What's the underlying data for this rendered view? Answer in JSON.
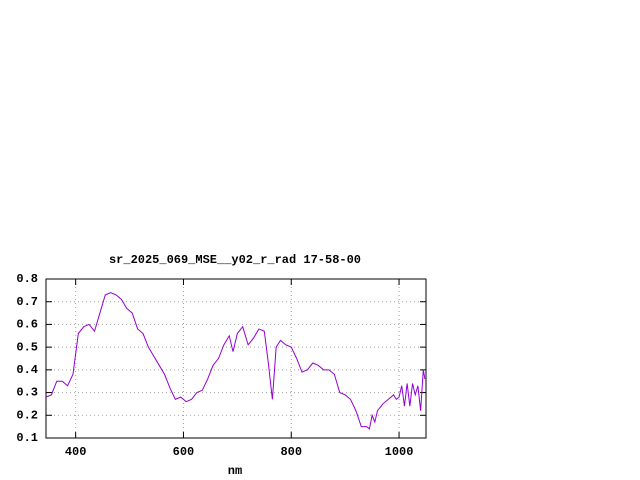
{
  "chart_data": {
    "type": "line",
    "title": "sr_2025_069_MSE__y02_r_rad 17-58-00",
    "x_label": "nm",
    "x": [
      345,
      355,
      365,
      375,
      385,
      395,
      405,
      415,
      425,
      435,
      445,
      455,
      465,
      475,
      485,
      495,
      505,
      515,
      525,
      535,
      545,
      555,
      565,
      575,
      585,
      595,
      605,
      615,
      625,
      635,
      645,
      655,
      665,
      675,
      685,
      692,
      700,
      710,
      720,
      730,
      740,
      750,
      758,
      765,
      772,
      780,
      790,
      800,
      810,
      820,
      830,
      840,
      850,
      860,
      870,
      880,
      890,
      900,
      910,
      920,
      930,
      940,
      945,
      950,
      955,
      960,
      970,
      980,
      990,
      995,
      1000,
      1005,
      1010,
      1015,
      1020,
      1025,
      1030,
      1035,
      1040,
      1045,
      1048
    ],
    "series": [
      {
        "name": null,
        "color": "#9400d3",
        "values": [
          0.28,
          0.29,
          0.35,
          0.35,
          0.33,
          0.38,
          0.56,
          0.59,
          0.6,
          0.57,
          0.65,
          0.73,
          0.74,
          0.73,
          0.71,
          0.67,
          0.65,
          0.58,
          0.56,
          0.5,
          0.46,
          0.42,
          0.38,
          0.32,
          0.27,
          0.28,
          0.26,
          0.27,
          0.3,
          0.31,
          0.36,
          0.42,
          0.45,
          0.51,
          0.55,
          0.48,
          0.56,
          0.59,
          0.51,
          0.54,
          0.58,
          0.57,
          0.42,
          0.27,
          0.5,
          0.53,
          0.51,
          0.5,
          0.45,
          0.39,
          0.4,
          0.43,
          0.42,
          0.4,
          0.4,
          0.38,
          0.3,
          0.29,
          0.27,
          0.22,
          0.15,
          0.15,
          0.14,
          0.2,
          0.17,
          0.22,
          0.25,
          0.27,
          0.29,
          0.27,
          0.28,
          0.33,
          0.24,
          0.34,
          0.24,
          0.34,
          0.29,
          0.33,
          0.22,
          0.4,
          0.36
        ]
      }
    ],
    "xlim": [
      345,
      1050
    ],
    "xticks": [
      400,
      600,
      800,
      1000
    ],
    "ylim": [
      0.1,
      0.8
    ],
    "yticks": [
      0.1,
      0.2,
      0.3,
      0.4,
      0.5,
      0.6,
      0.7,
      0.8
    ],
    "grid": true
  }
}
